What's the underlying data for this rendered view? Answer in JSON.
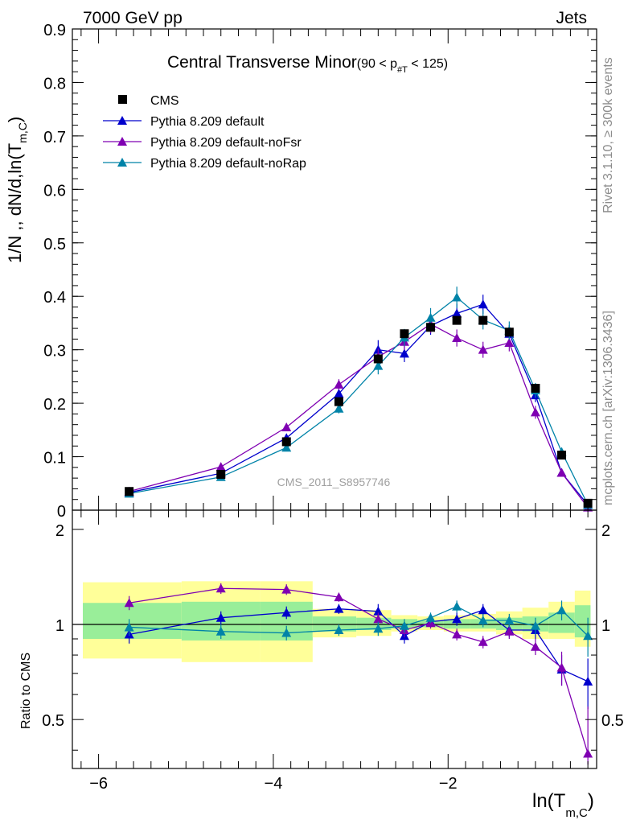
{
  "header": {
    "left": "7000 GeV pp",
    "right": "Jets"
  },
  "side_labels": {
    "upper": "Rivet 3.1.10, ≥ 300k events",
    "lower": "mcplots.cern.ch [arXiv:1306.3436]"
  },
  "watermark": "CMS_2011_S8957746",
  "title": {
    "main": "Central Transverse Minor",
    "sub_pre": "(90 < p",
    "sub_sub": "#T",
    "sub_post": " < 125)"
  },
  "ylabel": {
    "pre": "1/N",
    "mid": " ,, dN/d,ln(T",
    "sub": "m,C",
    "post": ")"
  },
  "ratio_ylabel": "Ratio to CMS",
  "xlabel": {
    "pre": "ln(T",
    "sub": "m,C",
    "post": ")"
  },
  "legend": [
    {
      "label": "CMS",
      "marker": "square",
      "color": "#000000"
    },
    {
      "label": "Pythia 8.209 default",
      "marker": "triangle",
      "color": "#0000cc"
    },
    {
      "label": "Pythia 8.209 default-noFsr",
      "marker": "triangle",
      "color": "#7f00b2"
    },
    {
      "label": "Pythia 8.209 default-noRap",
      "marker": "triangle",
      "color": "#0083a8"
    }
  ],
  "chart_data": {
    "type": "line",
    "xlim": [
      -6.3,
      -0.3
    ],
    "ylim": [
      0,
      0.9
    ],
    "ratio_ylim": [
      0.35,
      2.3
    ],
    "x_ticks": [
      -6,
      -4,
      -2
    ],
    "x_tick_labels": [
      "−6",
      "−4",
      "−2"
    ],
    "y_ticks": [
      0,
      0.1,
      0.2,
      0.3,
      0.4,
      0.5,
      0.6,
      0.7,
      0.8,
      0.9
    ],
    "y_tick_labels": [
      "0",
      "0.1",
      "0.2",
      "0.3",
      "0.4",
      "0.5",
      "0.6",
      "0.7",
      "0.8",
      "0.9"
    ],
    "ratio_ticks": [
      0.5,
      1,
      2
    ],
    "ratio_tick_labels": [
      "0.5",
      "1",
      "2"
    ],
    "bins": [
      [
        -6.3,
        -5.05
      ],
      [
        -5.05,
        -4.15
      ],
      [
        -4.15,
        -3.55
      ],
      [
        -3.55,
        -3.05
      ],
      [
        -3.05,
        -2.65
      ],
      [
        -2.65,
        -2.35
      ],
      [
        -2.35,
        -2.05
      ],
      [
        -2.05,
        -1.75
      ],
      [
        -1.75,
        -1.45
      ],
      [
        -1.45,
        -1.15
      ],
      [
        -1.15,
        -0.85
      ],
      [
        -0.85,
        -0.55
      ],
      [
        -0.55,
        -0.25
      ]
    ],
    "x": [
      -5.65,
      -4.6,
      -3.85,
      -3.25,
      -2.8,
      -2.5,
      -2.2,
      -1.9,
      -1.6,
      -1.3,
      -1.0,
      -0.7,
      -0.4
    ],
    "data": {
      "name": "CMS",
      "values": [
        0.035,
        0.067,
        0.128,
        0.203,
        0.283,
        0.33,
        0.342,
        0.355,
        0.355,
        0.333,
        0.228,
        0.103,
        0.013
      ],
      "band_outer": [
        [
          0.78,
          1.36
        ],
        [
          0.76,
          1.37
        ],
        [
          0.76,
          1.37
        ],
        [
          0.91,
          1.12
        ],
        [
          0.92,
          1.11
        ],
        [
          0.95,
          1.07
        ],
        [
          0.96,
          1.06
        ],
        [
          0.95,
          1.07
        ],
        [
          0.95,
          1.08
        ],
        [
          0.93,
          1.1
        ],
        [
          0.9,
          1.13
        ],
        [
          0.9,
          1.18
        ],
        [
          0.85,
          1.28
        ]
      ],
      "band_inner": [
        [
          0.9,
          1.17
        ],
        [
          0.89,
          1.18
        ],
        [
          0.89,
          1.18
        ],
        [
          0.95,
          1.06
        ],
        [
          0.96,
          1.05
        ],
        [
          0.97,
          1.04
        ],
        [
          0.98,
          1.03
        ],
        [
          0.97,
          1.04
        ],
        [
          0.97,
          1.04
        ],
        [
          0.96,
          1.05
        ],
        [
          0.95,
          1.06
        ],
        [
          0.94,
          1.09
        ],
        [
          0.91,
          1.15
        ]
      ]
    },
    "series": [
      {
        "name": "Pythia 8.209 default",
        "color": "#0000cc",
        "values": [
          0.033,
          0.069,
          0.135,
          0.218,
          0.3,
          0.293,
          0.345,
          0.368,
          0.385,
          0.33,
          0.215,
          0.07,
          0.01
        ],
        "errors": [
          0.003,
          0.004,
          0.006,
          0.009,
          0.018,
          0.016,
          0.017,
          0.018,
          0.018,
          0.016,
          0.013,
          0.006,
          0.002
        ],
        "ratio": [
          0.93,
          1.05,
          1.09,
          1.12,
          1.1,
          0.92,
          1.02,
          1.04,
          1.11,
          0.96,
          0.96,
          0.72,
          0.66
        ],
        "ratio_err": [
          0.06,
          0.05,
          0.05,
          0.04,
          0.06,
          0.05,
          0.04,
          0.05,
          0.05,
          0.05,
          0.06,
          0.08,
          0.12
        ]
      },
      {
        "name": "Pythia 8.209 default-noFsr",
        "color": "#7f00b2",
        "values": [
          0.035,
          0.081,
          0.155,
          0.235,
          0.287,
          0.315,
          0.348,
          0.322,
          0.3,
          0.313,
          0.183,
          0.07,
          0.005
        ],
        "errors": [
          0.003,
          0.004,
          0.007,
          0.01,
          0.015,
          0.016,
          0.017,
          0.016,
          0.015,
          0.016,
          0.012,
          0.006,
          0.002
        ],
        "ratio": [
          1.17,
          1.3,
          1.29,
          1.22,
          1.04,
          0.96,
          1.01,
          0.93,
          0.88,
          0.95,
          0.85,
          0.73,
          0.39
        ],
        "ratio_err": [
          0.06,
          0.05,
          0.05,
          0.04,
          0.05,
          0.05,
          0.04,
          0.04,
          0.04,
          0.05,
          0.05,
          0.09,
          0.16
        ]
      },
      {
        "name": "Pythia 8.209 default-noRap",
        "color": "#0083a8",
        "values": [
          0.031,
          0.062,
          0.117,
          0.19,
          0.27,
          0.323,
          0.36,
          0.398,
          0.356,
          0.336,
          0.224,
          0.109,
          0.01
        ],
        "errors": [
          0.003,
          0.004,
          0.006,
          0.009,
          0.016,
          0.016,
          0.018,
          0.02,
          0.018,
          0.017,
          0.014,
          0.008,
          0.002
        ],
        "ratio": [
          0.98,
          0.95,
          0.94,
          0.96,
          0.97,
          0.99,
          1.05,
          1.14,
          1.03,
          1.03,
          0.99,
          1.11,
          0.92
        ],
        "ratio_err": [
          0.06,
          0.05,
          0.05,
          0.04,
          0.05,
          0.05,
          0.04,
          0.05,
          0.05,
          0.05,
          0.06,
          0.08,
          0.13
        ]
      }
    ]
  }
}
